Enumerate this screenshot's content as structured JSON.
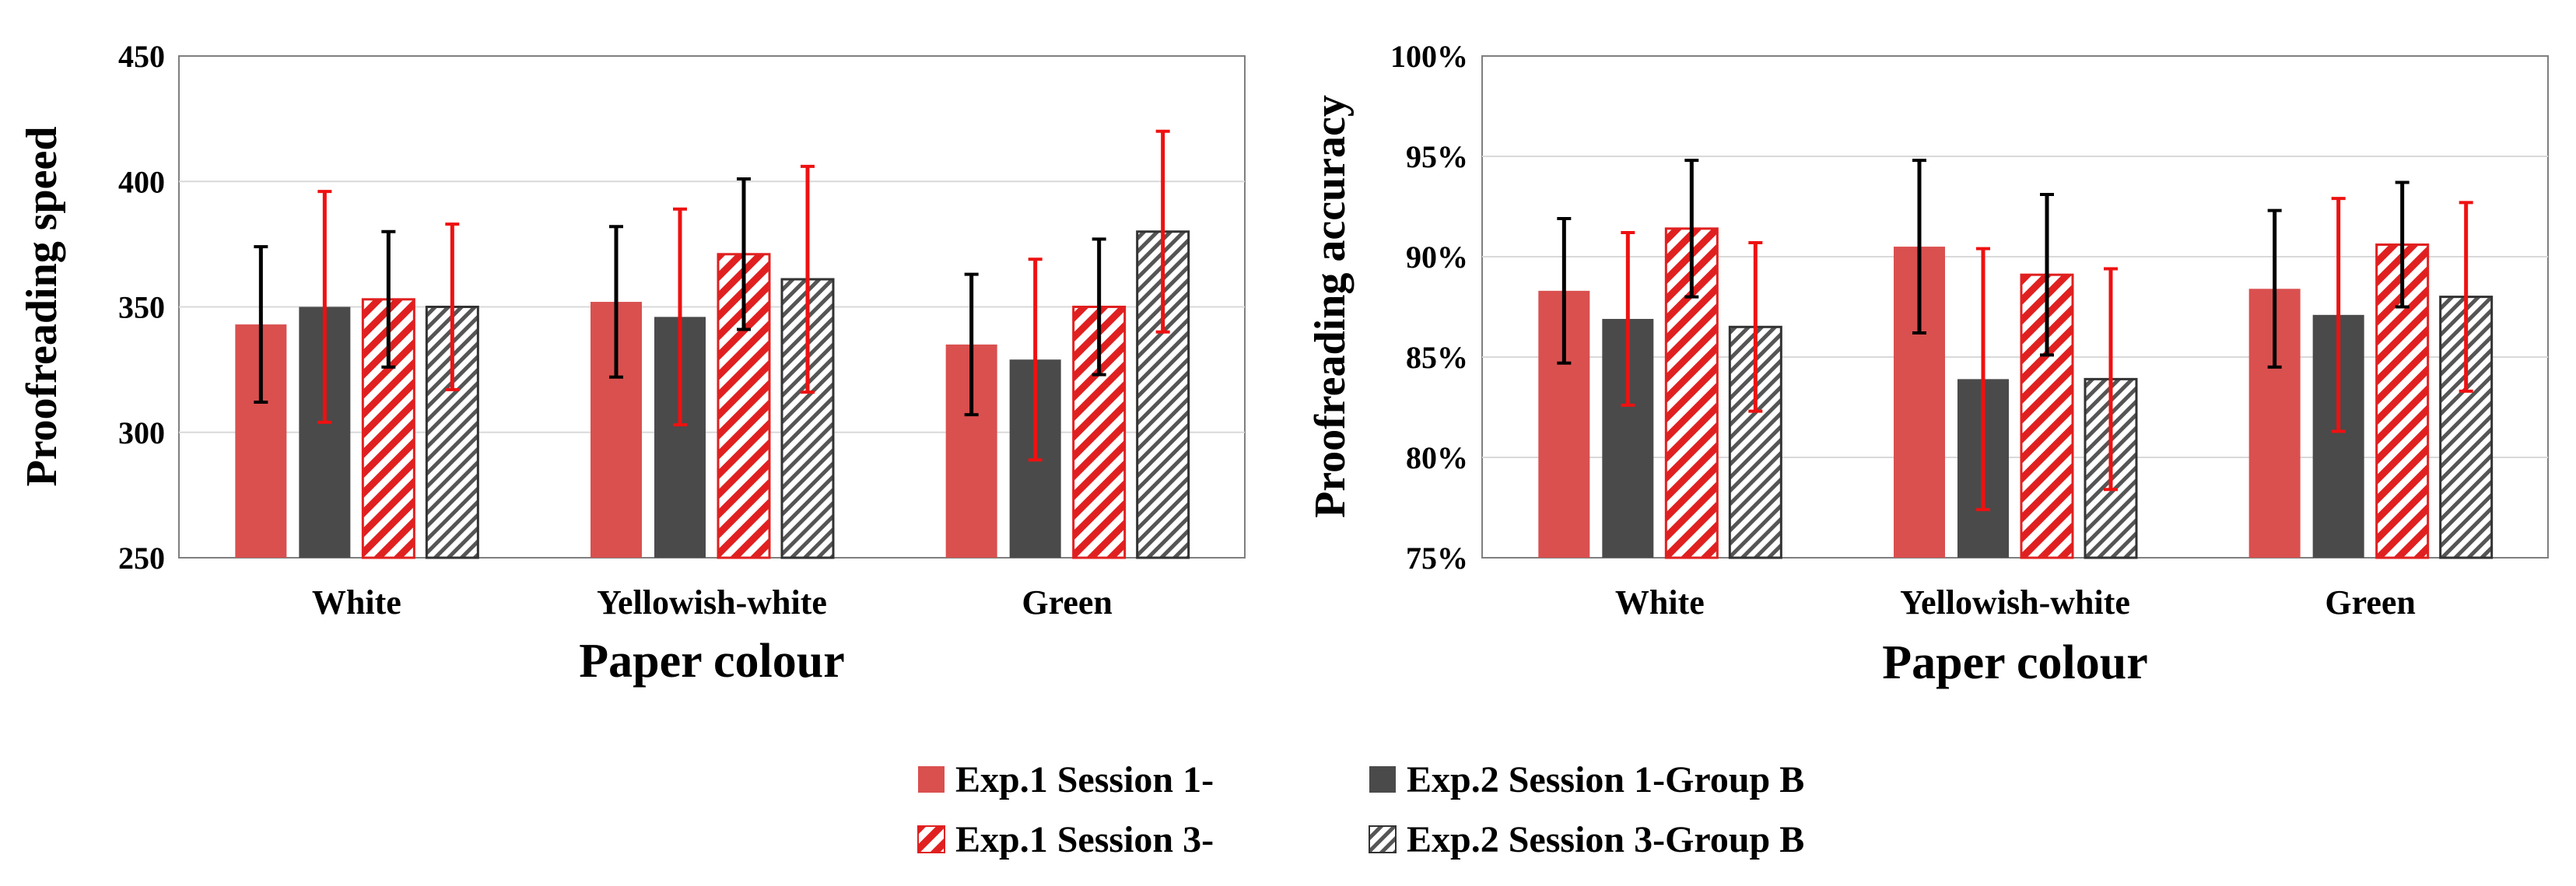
{
  "chart_data": [
    {
      "type": "bar",
      "title": "",
      "xlabel": "Paper colour",
      "ylabel": "Proofreading speed",
      "ylim": [
        250,
        450
      ],
      "yticks": [
        250,
        300,
        350,
        400,
        450
      ],
      "ytick_labels": [
        "250",
        "300",
        "350",
        "400",
        "450"
      ],
      "grid": true,
      "categories": [
        "White",
        "Yellowish-white",
        "Green"
      ],
      "series": [
        {
          "name": "Exp.1 Session 1",
          "values": [
            343,
            352,
            335
          ],
          "errors": [
            31,
            30,
            28
          ]
        },
        {
          "name": "Exp.2 Session 1-Group B",
          "values": [
            350,
            346,
            329
          ],
          "errors": [
            46,
            43,
            40
          ]
        },
        {
          "name": "Exp.1 Session 3",
          "values": [
            353,
            371,
            350
          ],
          "errors": [
            27,
            30,
            27
          ]
        },
        {
          "name": "Exp.2 Session 3-Group B",
          "values": [
            350,
            361,
            380
          ],
          "errors": [
            33,
            45,
            40
          ]
        }
      ]
    },
    {
      "type": "bar",
      "title": "",
      "xlabel": "Paper colour",
      "ylabel": "Proofreading accuracy",
      "ylim": [
        75,
        100
      ],
      "yticks": [
        75,
        80,
        85,
        90,
        95,
        100
      ],
      "ytick_labels": [
        "75%",
        "80%",
        "85%",
        "90%",
        "95%",
        "100%"
      ],
      "grid": true,
      "categories": [
        "White",
        "Yellowish-white",
        "Green"
      ],
      "series": [
        {
          "name": "Exp.1 Session 1",
          "values": [
            88.3,
            90.5,
            88.4
          ],
          "errors": [
            3.6,
            4.3,
            3.9
          ]
        },
        {
          "name": "Exp.2 Session 1-Group B",
          "values": [
            86.9,
            83.9,
            87.1
          ],
          "errors": [
            4.3,
            6.5,
            5.8
          ]
        },
        {
          "name": "Exp.1 Session 3",
          "values": [
            91.4,
            89.1,
            90.6
          ],
          "errors": [
            3.4,
            4.0,
            3.1
          ]
        },
        {
          "name": "Exp.2 Session 3-Group B",
          "values": [
            86.5,
            83.9,
            88.0
          ],
          "errors": [
            4.2,
            5.5,
            4.7
          ]
        }
      ]
    }
  ],
  "legend": {
    "items": [
      {
        "label": "Exp.1 Session 1-",
        "style": "solid-red"
      },
      {
        "label": "Exp.2 Session 1-Group B",
        "style": "solid-dark"
      },
      {
        "label": "Exp.1 Session 3-",
        "style": "hatch-red"
      },
      {
        "label": "Exp.2 Session 3-Group B",
        "style": "hatch-gray"
      }
    ]
  },
  "colors": {
    "red": "#d9504f",
    "dark": "#4a4a4a",
    "hatch_red": "#e02020",
    "hatch_gray": "#555555",
    "err_black": "#000000",
    "err_red": "#ee1111",
    "grid": "#d9d9d9",
    "frame": "#7f7f7f"
  }
}
